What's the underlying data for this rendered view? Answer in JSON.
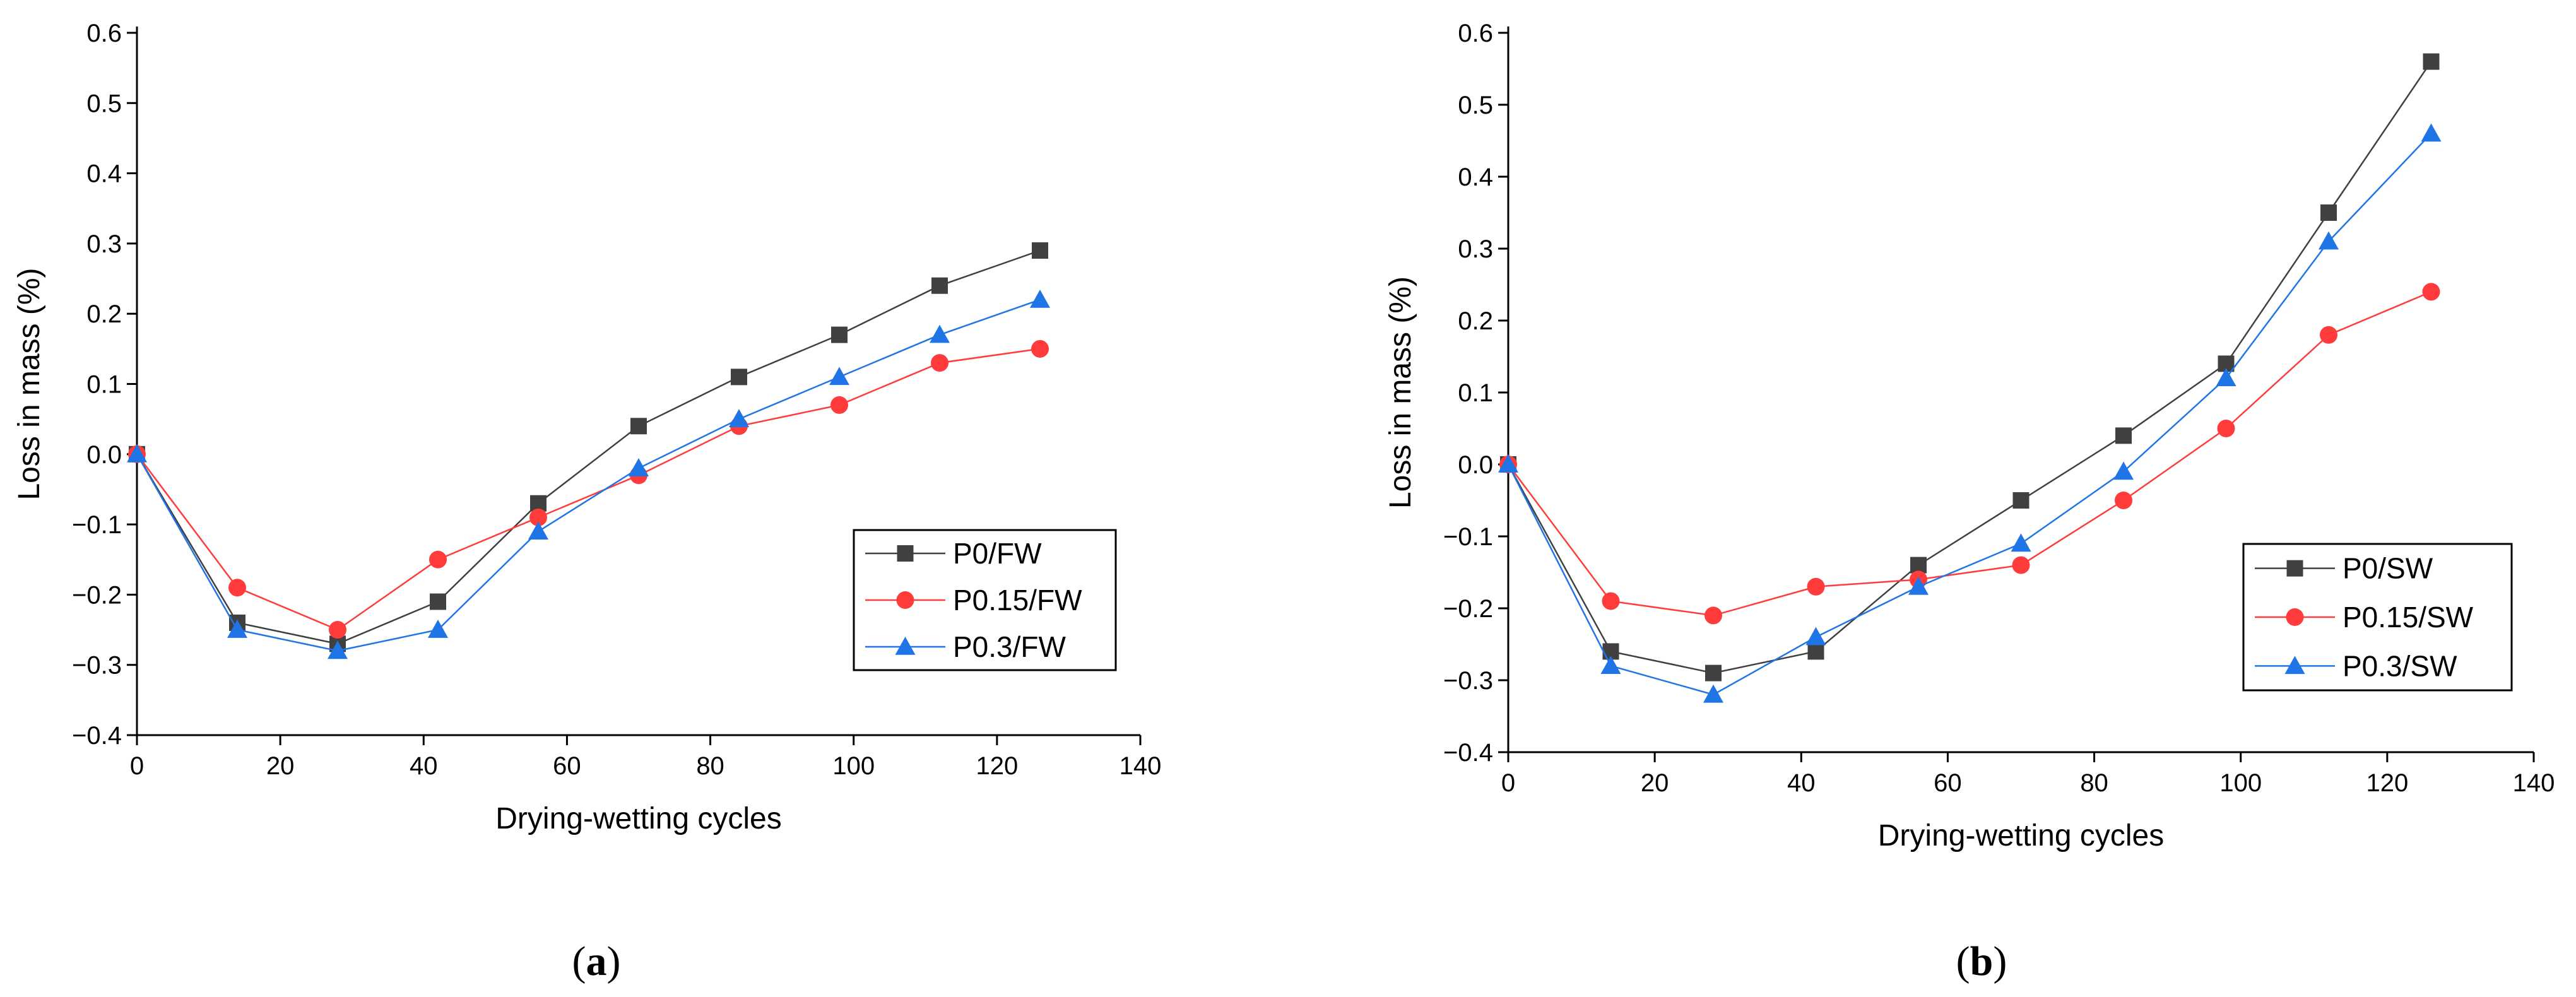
{
  "chart_data": [
    {
      "type": "line",
      "panel_label": "(a)",
      "xlabel": "Drying-wetting cycles",
      "ylabel": "Loss in mass (%)",
      "xlim": [
        0,
        140
      ],
      "ylim": [
        -0.4,
        0.6
      ],
      "x_ticks": [
        0,
        20,
        40,
        60,
        80,
        100,
        120,
        140
      ],
      "y_ticks": [
        -0.4,
        -0.3,
        -0.2,
        -0.1,
        0.0,
        0.1,
        0.2,
        0.3,
        0.4,
        0.5,
        0.6
      ],
      "grid": false,
      "legend_position": "lower-right",
      "x": [
        0,
        14,
        28,
        42,
        56,
        70,
        84,
        98,
        112,
        126
      ],
      "series": [
        {
          "name": "P0/FW",
          "color": "#404040",
          "marker": "square",
          "values": [
            0.0,
            -0.24,
            -0.27,
            -0.21,
            -0.07,
            0.04,
            0.11,
            0.17,
            0.24,
            0.29
          ]
        },
        {
          "name": "P0.15/FW",
          "color": "#ff3b3b",
          "marker": "circle",
          "values": [
            0.0,
            -0.19,
            -0.25,
            -0.15,
            -0.09,
            -0.03,
            0.04,
            0.07,
            0.13,
            0.15
          ]
        },
        {
          "name": "P0.3/FW",
          "color": "#1f74e6",
          "marker": "triangle",
          "values": [
            0.0,
            -0.25,
            -0.28,
            -0.25,
            -0.11,
            -0.02,
            0.05,
            0.11,
            0.17,
            0.22
          ]
        }
      ]
    },
    {
      "type": "line",
      "panel_label": "(b)",
      "xlabel": "Drying-wetting cycles",
      "ylabel": "Loss in mass (%)",
      "xlim": [
        0,
        140
      ],
      "ylim": [
        -0.4,
        0.6
      ],
      "x_ticks": [
        0,
        20,
        40,
        60,
        80,
        100,
        120,
        140
      ],
      "y_ticks": [
        -0.4,
        -0.3,
        -0.2,
        -0.1,
        0.0,
        0.1,
        0.2,
        0.3,
        0.4,
        0.5,
        0.6
      ],
      "grid": false,
      "legend_position": "lower-right",
      "x": [
        0,
        14,
        28,
        42,
        56,
        70,
        84,
        98,
        112,
        126
      ],
      "series": [
        {
          "name": "P0/SW",
          "color": "#404040",
          "marker": "square",
          "values": [
            0.0,
            -0.26,
            -0.29,
            -0.26,
            -0.14,
            -0.05,
            0.04,
            0.14,
            0.35,
            0.56
          ]
        },
        {
          "name": "P0.15/SW",
          "color": "#ff3b3b",
          "marker": "circle",
          "values": [
            0.0,
            -0.19,
            -0.21,
            -0.17,
            -0.16,
            -0.14,
            -0.05,
            0.05,
            0.18,
            0.24
          ]
        },
        {
          "name": "P0.3/SW",
          "color": "#1f74e6",
          "marker": "triangle",
          "values": [
            0.0,
            -0.28,
            -0.32,
            -0.24,
            -0.17,
            -0.11,
            -0.01,
            0.12,
            0.31,
            0.46
          ]
        }
      ]
    }
  ]
}
